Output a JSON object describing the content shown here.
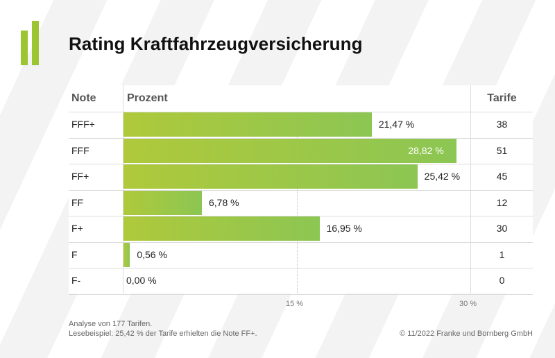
{
  "title": "Rating Kraftfahrzeugversicherung",
  "columns": {
    "note": "Note",
    "prozent": "Prozent",
    "tarife": "Tarife"
  },
  "chart_data": {
    "type": "bar",
    "orientation": "horizontal",
    "title": "Rating Kraftfahrzeugversicherung",
    "categories": [
      "FFF+",
      "FFF",
      "FF+",
      "FF",
      "F+",
      "F",
      "F-"
    ],
    "values": [
      21.47,
      28.82,
      25.42,
      6.78,
      16.95,
      0.56,
      0.0
    ],
    "value_labels": [
      "21,47 %",
      "28,82 %",
      "25,42 %",
      "6,78 %",
      "16,95 %",
      "0,56 %",
      "0,00 %"
    ],
    "tarife": [
      38,
      51,
      45,
      12,
      30,
      1,
      0
    ],
    "xlim": [
      0,
      30
    ],
    "ticks": [
      15,
      30
    ],
    "tick_labels": [
      "15 %",
      "30 %"
    ],
    "gridlines": "dashed at 15",
    "colors": {
      "bar_start": "#afc93b",
      "bar_end": "#8cc653"
    }
  },
  "footer": {
    "analysis": "Analyse von 177 Tarifen.",
    "example": "Lesebeispiel: 25,42 % der Tarife erhielten die Note FF+.",
    "copyright": "© 11/2022 Franke und Bornberg GmbH"
  }
}
